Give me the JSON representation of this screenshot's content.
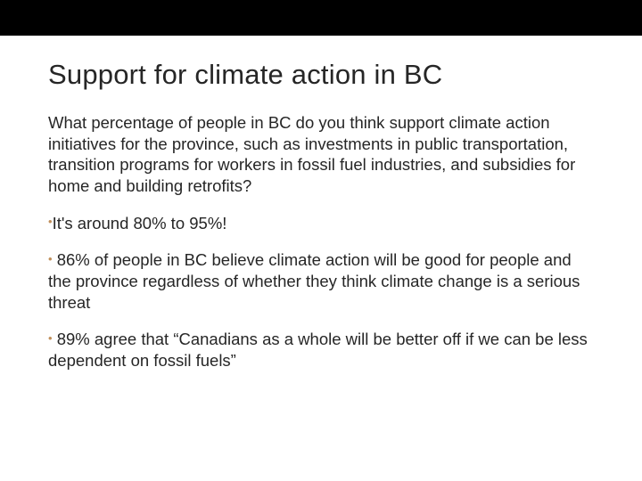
{
  "slide": {
    "title": "Support for climate action in BC",
    "intro": "What percentage of people in BC do you think support climate action initiatives for the province, such as investments in public transportation, transition programs for workers in fossil fuel industries, and subsidies for home and building retrofits?",
    "bullets": [
      "It's around 80% to 95%!",
      "86% of people in BC believe climate action will be good for people and the province regardless of whether they think climate change is a serious threat",
      "89% agree that “Canadians as a whole will be better off if we can be less dependent on fossil fuels”"
    ],
    "colors": {
      "topbar": "#000000",
      "background": "#ffffff",
      "text": "#262626",
      "bullet": "#c08f5a"
    },
    "typography": {
      "title_fontsize": 31,
      "body_fontsize": 18.5,
      "line_height": 1.28,
      "font_family": "Arial"
    }
  }
}
